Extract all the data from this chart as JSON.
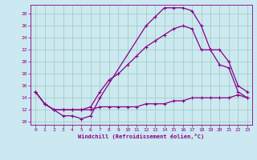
{
  "xlabel": "Windchill (Refroidissement éolien,°C)",
  "bg_color": "#cce8f0",
  "line_color": "#880088",
  "grid_color": "#99ccbb",
  "xlim": [
    -0.5,
    23.5
  ],
  "ylim": [
    9.5,
    29.5
  ],
  "yticks": [
    10,
    12,
    14,
    16,
    18,
    20,
    22,
    24,
    26,
    28
  ],
  "xticks": [
    0,
    1,
    2,
    3,
    4,
    5,
    6,
    7,
    8,
    9,
    10,
    11,
    12,
    13,
    14,
    15,
    16,
    17,
    18,
    19,
    20,
    21,
    22,
    23
  ],
  "series": [
    {
      "x": [
        0,
        1,
        2,
        3,
        4,
        5,
        6,
        7,
        12,
        13,
        14,
        15,
        16,
        17,
        18,
        19,
        20,
        21,
        22,
        23
      ],
      "y": [
        15,
        13,
        12,
        11,
        11,
        10.5,
        11,
        14,
        26,
        27.5,
        29,
        29,
        29,
        28.5,
        26,
        22,
        19.5,
        19,
        15,
        14
      ]
    },
    {
      "x": [
        0,
        1,
        2,
        3,
        4,
        5,
        6,
        7,
        8,
        9,
        10,
        11,
        12,
        13,
        14,
        15,
        16,
        17,
        18,
        19,
        20,
        21,
        22,
        23
      ],
      "y": [
        15,
        13,
        12,
        12,
        12,
        12,
        12,
        12.5,
        12.5,
        12.5,
        12.5,
        12.5,
        13,
        13,
        13,
        13.5,
        13.5,
        14,
        14,
        14,
        14,
        14,
        14.5,
        14
      ]
    },
    {
      "x": [
        0,
        1,
        2,
        3,
        4,
        5,
        6,
        7,
        8,
        9,
        10,
        11,
        12,
        13,
        14,
        15,
        16,
        17,
        18,
        19,
        20,
        21,
        22,
        23
      ],
      "y": [
        15,
        13,
        12,
        12,
        12,
        12,
        12.5,
        15,
        17,
        18,
        19.5,
        21,
        22.5,
        23.5,
        24.5,
        25.5,
        26,
        25.5,
        22,
        22,
        22,
        20,
        16,
        15
      ]
    }
  ]
}
